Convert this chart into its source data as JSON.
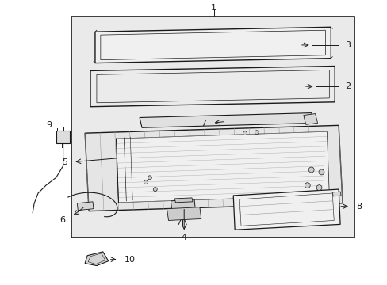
{
  "bg_color": "#ffffff",
  "box_bg": "#e8e8e8",
  "line_color": "#1a1a1a",
  "fig_width": 4.89,
  "fig_height": 3.6,
  "dpi": 100,
  "label_fontsize": 7.5
}
